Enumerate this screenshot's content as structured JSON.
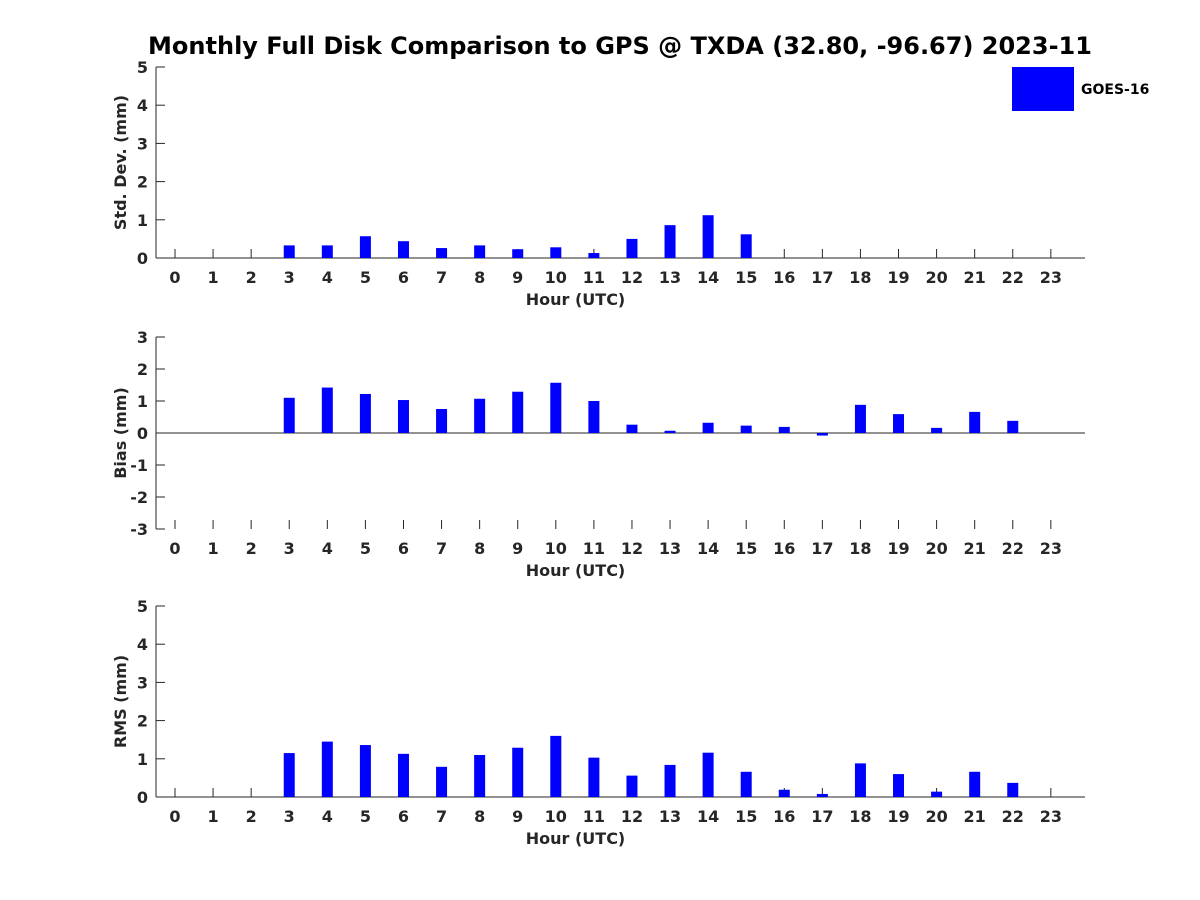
{
  "figure": {
    "title": "Monthly Full Disk Comparison to GPS @ TXDA (32.80, -96.67) 2023-11"
  },
  "legend": {
    "label": "GOES-16",
    "color": "#0000ff",
    "placement": "top-right"
  },
  "chart_data": [
    {
      "type": "bar",
      "xlabel": "Hour (UTC)",
      "ylabel": "Std. Dev. (mm)",
      "ylim": [
        0,
        5
      ],
      "yticks": [
        0,
        1,
        2,
        3,
        4,
        5
      ],
      "categories": [
        0,
        1,
        2,
        3,
        4,
        5,
        6,
        7,
        8,
        9,
        10,
        11,
        12,
        13,
        14,
        15,
        16,
        17,
        18,
        19,
        20,
        21,
        22,
        23
      ],
      "series": [
        {
          "name": "GOES-16",
          "color": "#0000ff",
          "values": [
            null,
            null,
            null,
            0.33,
            0.33,
            0.57,
            0.44,
            0.26,
            0.33,
            0.23,
            0.28,
            0.13,
            0.5,
            0.86,
            1.12,
            0.62,
            null,
            null,
            null,
            null,
            null,
            null,
            null,
            null
          ]
        }
      ]
    },
    {
      "type": "bar",
      "xlabel": "Hour (UTC)",
      "ylabel": "Bias (mm)",
      "ylim": [
        -3,
        3
      ],
      "yticks": [
        -3,
        -2,
        -1,
        0,
        1,
        2,
        3
      ],
      "zero_line": true,
      "categories": [
        0,
        1,
        2,
        3,
        4,
        5,
        6,
        7,
        8,
        9,
        10,
        11,
        12,
        13,
        14,
        15,
        16,
        17,
        18,
        19,
        20,
        21,
        22,
        23
      ],
      "series": [
        {
          "name": "GOES-16",
          "color": "#0000ff",
          "values": [
            null,
            null,
            null,
            1.1,
            1.42,
            1.22,
            1.03,
            0.75,
            1.07,
            1.29,
            1.57,
            1.0,
            0.26,
            0.07,
            0.32,
            0.23,
            0.19,
            -0.08,
            0.88,
            0.59,
            0.16,
            0.66,
            0.38,
            null
          ]
        }
      ]
    },
    {
      "type": "bar",
      "xlabel": "Hour (UTC)",
      "ylabel": "RMS (mm)",
      "ylim": [
        0,
        5
      ],
      "yticks": [
        0,
        1,
        2,
        3,
        4,
        5
      ],
      "categories": [
        0,
        1,
        2,
        3,
        4,
        5,
        6,
        7,
        8,
        9,
        10,
        11,
        12,
        13,
        14,
        15,
        16,
        17,
        18,
        19,
        20,
        21,
        22,
        23
      ],
      "series": [
        {
          "name": "GOES-16",
          "color": "#0000ff",
          "values": [
            null,
            null,
            null,
            1.15,
            1.45,
            1.36,
            1.13,
            0.79,
            1.1,
            1.29,
            1.6,
            1.03,
            0.56,
            0.84,
            1.16,
            0.66,
            0.19,
            0.08,
            0.88,
            0.6,
            0.14,
            0.66,
            0.37,
            null
          ]
        }
      ]
    }
  ]
}
